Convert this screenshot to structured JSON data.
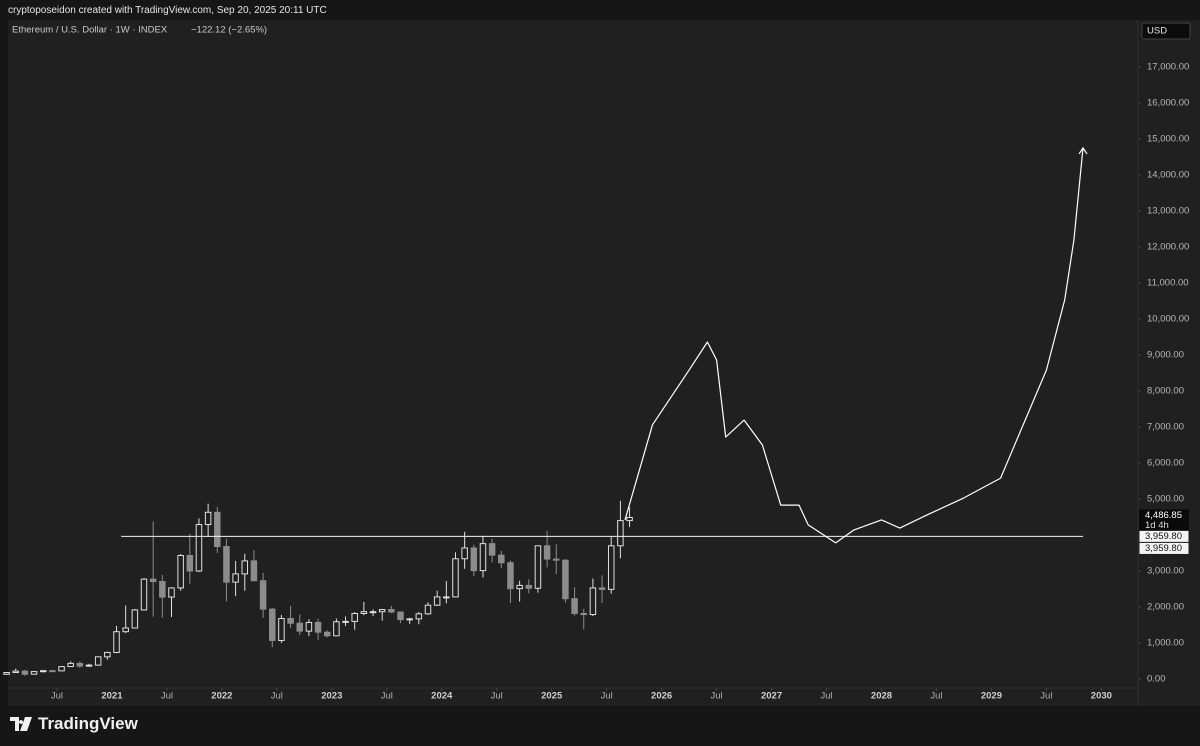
{
  "header": "cryptoposeidon created with TradingView.com, Sep 20, 2025 20:11 UTC",
  "footer_brand": "TradingView",
  "chart_data": {
    "type": "candlestick",
    "title": "Ethereum / U.S. Dollar · 1W · INDEX",
    "change": "−122.12 (−2.65%)",
    "currency": "USD",
    "grid": false,
    "up_color": "#e0e0e0",
    "down_color": "#8c8c8c",
    "xlim": [
      "2020-01",
      "2030-05"
    ],
    "ylim": [
      -250,
      18470
    ],
    "xticks": [
      {
        "value": "2020-07",
        "label": "Jul"
      },
      {
        "value": "2021-01",
        "label": "2021"
      },
      {
        "value": "2021-07",
        "label": "Jul"
      },
      {
        "value": "2022-01",
        "label": "2022"
      },
      {
        "value": "2022-07",
        "label": "Jul"
      },
      {
        "value": "2023-01",
        "label": "2023"
      },
      {
        "value": "2023-07",
        "label": "Jul"
      },
      {
        "value": "2024-01",
        "label": "2024"
      },
      {
        "value": "2024-07",
        "label": "Jul"
      },
      {
        "value": "2025-01",
        "label": "2025"
      },
      {
        "value": "2025-07",
        "label": "Jul"
      },
      {
        "value": "2026-01",
        "label": "2026"
      },
      {
        "value": "2026-07",
        "label": "Jul"
      },
      {
        "value": "2027-01",
        "label": "2027"
      },
      {
        "value": "2027-07",
        "label": "Jul"
      },
      {
        "value": "2028-01",
        "label": "2028"
      },
      {
        "value": "2028-07",
        "label": "Jul"
      },
      {
        "value": "2029-01",
        "label": "2029"
      },
      {
        "value": "2029-07",
        "label": "Jul"
      },
      {
        "value": "2030-01",
        "label": "2030"
      }
    ],
    "yticks": [
      {
        "value": 0,
        "label": "0.00"
      },
      {
        "value": 1000,
        "label": "1,000.00"
      },
      {
        "value": 2000,
        "label": "2,000.00"
      },
      {
        "value": 3000,
        "label": "3,000.00"
      },
      {
        "value": 4000,
        "label": "4,000.00"
      },
      {
        "value": 5000,
        "label": "5,000.00"
      },
      {
        "value": 6000,
        "label": "6,000.00"
      },
      {
        "value": 7000,
        "label": "7,000.00"
      },
      {
        "value": 8000,
        "label": "8,000.00"
      },
      {
        "value": 9000,
        "label": "9,000.00"
      },
      {
        "value": 10000,
        "label": "10,000.00"
      },
      {
        "value": 11000,
        "label": "11,000.00"
      },
      {
        "value": 12000,
        "label": "12,000.00"
      },
      {
        "value": 13000,
        "label": "13,000.00"
      },
      {
        "value": 14000,
        "label": "14,000.00"
      },
      {
        "value": 15000,
        "label": "15,000.00"
      },
      {
        "value": 16000,
        "label": "16,000.00"
      },
      {
        "value": 17000,
        "label": "17,000.00"
      }
    ],
    "x": [
      "2020-01",
      "2020-02",
      "2020-03",
      "2020-04",
      "2020-05",
      "2020-06",
      "2020-07",
      "2020-08",
      "2020-09",
      "2020-10",
      "2020-11",
      "2020-12",
      "2021-01",
      "2021-02",
      "2021-03",
      "2021-04",
      "2021-05",
      "2021-06",
      "2021-07",
      "2021-08",
      "2021-09",
      "2021-10",
      "2021-11",
      "2021-12",
      "2022-01",
      "2022-02",
      "2022-03",
      "2022-04",
      "2022-05",
      "2022-06",
      "2022-07",
      "2022-08",
      "2022-09",
      "2022-10",
      "2022-11",
      "2022-12",
      "2023-01",
      "2023-02",
      "2023-03",
      "2023-04",
      "2023-05",
      "2023-06",
      "2023-07",
      "2023-08",
      "2023-09",
      "2023-10",
      "2023-11",
      "2023-12",
      "2024-01",
      "2024-02",
      "2024-03",
      "2024-04",
      "2024-05",
      "2024-06",
      "2024-07",
      "2024-08",
      "2024-09",
      "2024-10",
      "2024-11",
      "2024-12",
      "2025-01",
      "2025-02",
      "2025-03",
      "2025-04",
      "2025-05",
      "2025-06",
      "2025-07",
      "2025-08",
      "2025-09"
    ],
    "open": [
      130,
      180,
      218,
      133,
      206,
      231,
      226,
      345,
      434,
      360,
      386,
      616,
      737,
      1314,
      1417,
      1919,
      2773,
      2707,
      2275,
      2530,
      3430,
      3000,
      4290,
      4630,
      3680,
      2690,
      2920,
      3280,
      2730,
      1940,
      1070,
      1680,
      1550,
      1330,
      1570,
      1300,
      1200,
      1590,
      1600,
      1820,
      1870,
      1870,
      1930,
      1860,
      1650,
      1670,
      1810,
      2050,
      2280,
      2280,
      3340,
      3640,
      3010,
      3760,
      3440,
      3230,
      2510,
      2600,
      2520,
      3700,
      3330,
      3300,
      2230,
      1820,
      1790,
      2530,
      2490,
      3700,
      4400
    ],
    "high": [
      185,
      288,
      253,
      227,
      245,
      255,
      350,
      490,
      488,
      420,
      623,
      755,
      1475,
      2040,
      1945,
      2800,
      4380,
      2890,
      2550,
      3470,
      4030,
      4460,
      4870,
      4780,
      3900,
      3280,
      3480,
      3580,
      2950,
      1970,
      1780,
      2030,
      1790,
      1660,
      1670,
      1350,
      1680,
      1740,
      1860,
      2140,
      1930,
      1930,
      2030,
      1870,
      1700,
      1860,
      2130,
      2450,
      2720,
      3520,
      4090,
      3730,
      3980,
      3890,
      3560,
      3290,
      2730,
      2770,
      3670,
      4110,
      3740,
      3330,
      2550,
      1950,
      2790,
      2880,
      3940,
      4950,
      4770
    ],
    "low": [
      127,
      180,
      90,
      130,
      178,
      215,
      222,
      340,
      308,
      335,
      370,
      535,
      715,
      1275,
      1460,
      1900,
      1730,
      1700,
      1720,
      2450,
      2650,
      2970,
      3950,
      3500,
      2160,
      2300,
      2450,
      2780,
      1700,
      880,
      1000,
      1420,
      1220,
      1190,
      1080,
      1160,
      1190,
      1470,
      1370,
      1770,
      1750,
      1620,
      1830,
      1550,
      1530,
      1520,
      1780,
      2030,
      2100,
      2270,
      3060,
      2860,
      2820,
      3240,
      3080,
      2110,
      2150,
      2380,
      2400,
      3100,
      2920,
      2120,
      1760,
      1380,
      1750,
      2110,
      2370,
      3350,
      4220
    ],
    "close": [
      180,
      218,
      133,
      206,
      231,
      226,
      345,
      434,
      360,
      386,
      616,
      737,
      1314,
      1417,
      1919,
      2773,
      2707,
      2275,
      2530,
      3430,
      3000,
      4290,
      4630,
      3680,
      2690,
      2920,
      3280,
      2730,
      1940,
      1070,
      1680,
      1550,
      1330,
      1570,
      1300,
      1200,
      1590,
      1600,
      1820,
      1870,
      1870,
      1930,
      1860,
      1650,
      1670,
      1810,
      2050,
      2280,
      2280,
      3340,
      3640,
      3010,
      3760,
      3440,
      3230,
      2510,
      2600,
      2520,
      3700,
      3330,
      3300,
      2230,
      1820,
      1790,
      2530,
      2490,
      3700,
      4400,
      4486.85
    ],
    "projection": {
      "color": "#ffffff",
      "x": [
        "2025-09",
        "2025-12",
        "2026-04",
        "2026-06",
        "2026-07",
        "2026-08",
        "2026-10",
        "2026-12",
        "2027-02",
        "2027-04",
        "2027-05",
        "2027-08",
        "2027-10",
        "2028-01",
        "2028-03",
        "2028-06",
        "2028-10",
        "2029-02",
        "2029-04",
        "2029-07",
        "2029-09",
        "2029-10",
        "2029-11"
      ],
      "values": [
        4420,
        7060,
        8580,
        9360,
        8860,
        6720,
        7190,
        6500,
        4830,
        4830,
        4280,
        3780,
        4140,
        4420,
        4190,
        4560,
        5030,
        5580,
        6780,
        8580,
        10530,
        12190,
        14750
      ]
    },
    "hline": {
      "value": 3959.8,
      "x": [
        "2021-02",
        "2029-11"
      ],
      "labels": [
        "3,959.80",
        "3,959.80"
      ]
    },
    "last_price": {
      "value": 4486.85,
      "label": "4,486.85",
      "countdown": "1d 4h"
    }
  }
}
